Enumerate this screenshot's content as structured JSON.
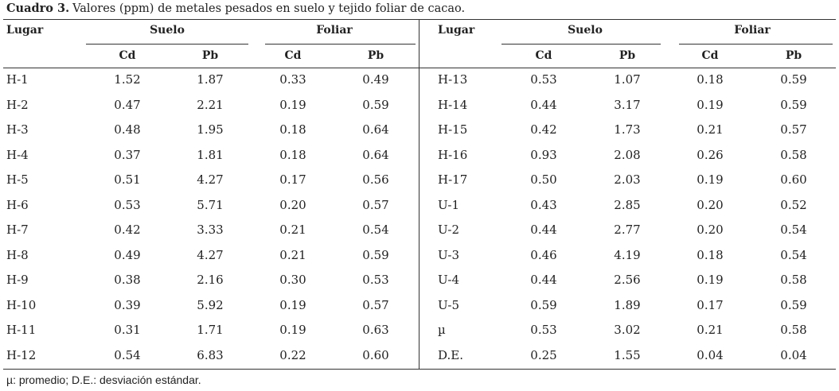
{
  "caption": {
    "label": "Cuadro 3.",
    "text": "Valores (ppm) de metales pesados en suelo y tejido foliar de cacao."
  },
  "table": {
    "header_groups": [
      "Lugar",
      "Suelo",
      "Foliar",
      "Lugar",
      "Suelo",
      "Foliar"
    ],
    "header_sub": [
      "Cd",
      "Pb",
      "Cd",
      "Pb",
      "Cd",
      "Pb",
      "Cd",
      "Pb"
    ],
    "rows": [
      [
        "H-1",
        "1.52",
        "1.87",
        "0.33",
        "0.49",
        "H-13",
        "0.53",
        "1.07",
        "0.18",
        "0.59"
      ],
      [
        "H-2",
        "0.47",
        "2.21",
        "0.19",
        "0.59",
        "H-14",
        "0.44",
        "3.17",
        "0.19",
        "0.59"
      ],
      [
        "H-3",
        "0.48",
        "1.95",
        "0.18",
        "0.64",
        "H-15",
        "0.42",
        "1.73",
        "0.21",
        "0.57"
      ],
      [
        "H-4",
        "0.37",
        "1.81",
        "0.18",
        "0.64",
        "H-16",
        "0.93",
        "2.08",
        "0.26",
        "0.58"
      ],
      [
        "H-5",
        "0.51",
        "4.27",
        "0.17",
        "0.56",
        "H-17",
        "0.50",
        "2.03",
        "0.19",
        "0.60"
      ],
      [
        "H-6",
        "0.53",
        "5.71",
        "0.20",
        "0.57",
        "U-1",
        "0.43",
        "2.85",
        "0.20",
        "0.52"
      ],
      [
        "H-7",
        "0.42",
        "3.33",
        "0.21",
        "0.54",
        "U-2",
        "0.44",
        "2.77",
        "0.20",
        "0.54"
      ],
      [
        "H-8",
        "0.49",
        "4.27",
        "0.21",
        "0.59",
        "U-3",
        "0.46",
        "4.19",
        "0.18",
        "0.54"
      ],
      [
        "H-9",
        "0.38",
        "2.16",
        "0.30",
        "0.53",
        "U-4",
        "0.44",
        "2.56",
        "0.19",
        "0.58"
      ],
      [
        "H-10",
        "0.39",
        "5.92",
        "0.19",
        "0.57",
        "U-5",
        "0.59",
        "1.89",
        "0.17",
        "0.59"
      ],
      [
        "H-11",
        "0.31",
        "1.71",
        "0.19",
        "0.63",
        "µ",
        "0.53",
        "3.02",
        "0.21",
        "0.58"
      ],
      [
        "H-12",
        "0.54",
        "6.83",
        "0.22",
        "0.60",
        "D.E.",
        "0.25",
        "1.55",
        "0.04",
        "0.04"
      ]
    ]
  },
  "footnote": "µ: promedio; D.E.: desviación estándar."
}
